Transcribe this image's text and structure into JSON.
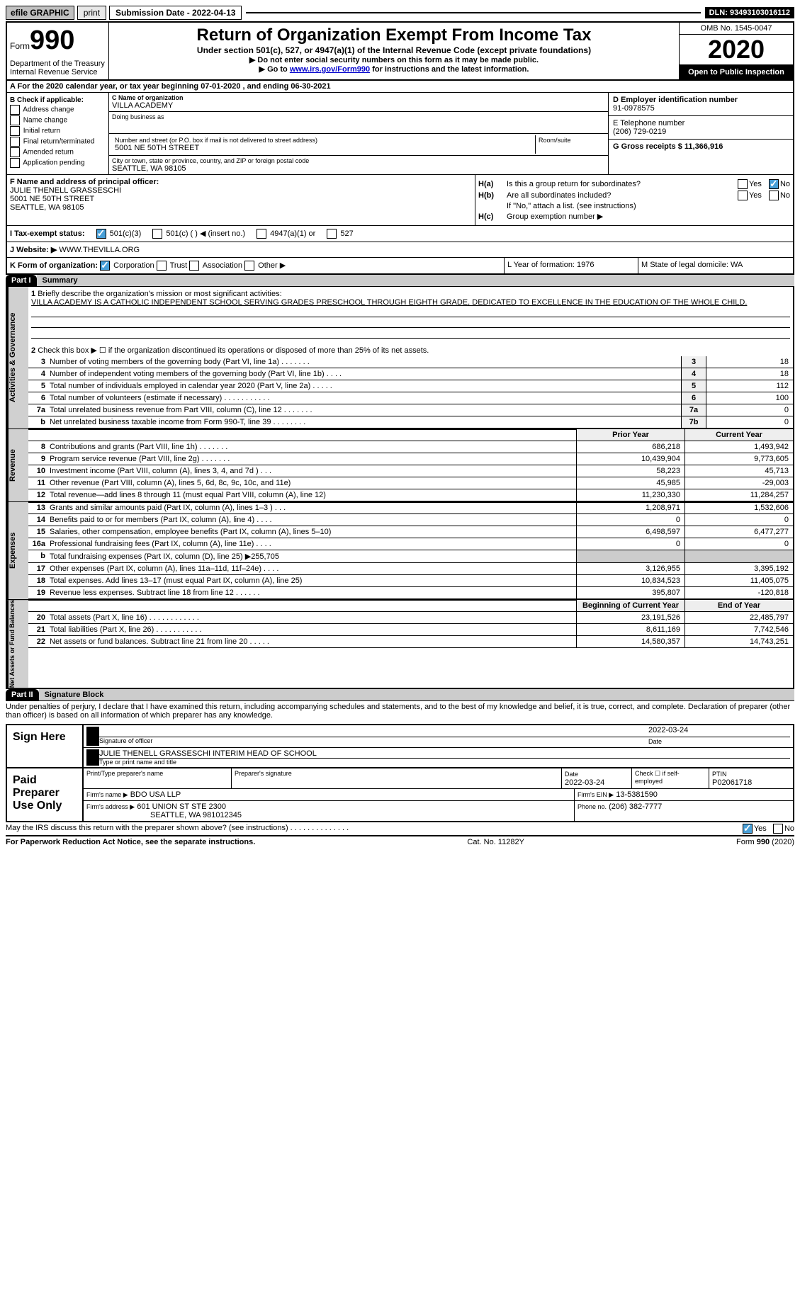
{
  "topbar": {
    "efile": "efile GRAPHIC",
    "print": "print",
    "subdate_label": "Submission Date - 2022-04-13",
    "dln": "DLN: 93493103016112"
  },
  "header": {
    "form_word": "Form",
    "form_num": "990",
    "dept1": "Department of the Treasury",
    "dept2": "Internal Revenue Service",
    "title": "Return of Organization Exempt From Income Tax",
    "subtitle": "Under section 501(c), 527, or 4947(a)(1) of the Internal Revenue Code (except private foundations)",
    "ssn": "▶ Do not enter social security numbers on this form as it may be made public.",
    "goto_pre": "▶ Go to ",
    "goto_link": "www.irs.gov/Form990",
    "goto_post": " for instructions and the latest information.",
    "omb": "OMB No. 1545-0047",
    "year": "2020",
    "open": "Open to Public Inspection"
  },
  "row_a": "A For the 2020 calendar year, or tax year beginning 07-01-2020     , and ending 06-30-2021",
  "box_b": {
    "title": "B Check if applicable:",
    "addr": "Address change",
    "name": "Name change",
    "initial": "Initial return",
    "final": "Final return/terminated",
    "amended": "Amended return",
    "app": "Application pending"
  },
  "box_c": {
    "name_label": "C Name of organization",
    "name": "VILLA ACADEMY",
    "dba_label": "Doing business as",
    "addr_label": "Number and street (or P.O. box if mail is not delivered to street address)",
    "room_label": "Room/suite",
    "addr": "5001 NE 50TH STREET",
    "city_label": "City or town, state or province, country, and ZIP or foreign postal code",
    "city": "SEATTLE, WA  98105"
  },
  "box_d": {
    "ein_label": "D Employer identification number",
    "ein": "91-0978575",
    "phone_label": "E Telephone number",
    "phone": "(206) 729-0219",
    "gross_label": "G Gross receipts $ 11,366,916"
  },
  "box_f": {
    "label": "F Name and address of principal officer:",
    "name": "JULIE THENELL GRASSESCHI",
    "addr": "5001 NE 50TH STREET",
    "city": "SEATTLE, WA  98105"
  },
  "box_h": {
    "ha": "Is this a group return for subordinates?",
    "hb": "Are all subordinates included?",
    "attach": "If \"No,\" attach a list. (see instructions)",
    "hc": "Group exemption number ▶",
    "yes": "Yes",
    "no": "No",
    "ha_label": "H(a)",
    "hb_label": "H(b)",
    "hc_label": "H(c)"
  },
  "row_i": {
    "label": "I   Tax-exempt status:",
    "c3": "501(c)(3)",
    "c": "501(c) (   ) ◀ (insert no.)",
    "a1": "4947(a)(1) or",
    "s527": "527"
  },
  "row_j": {
    "label": "J   Website: ▶",
    "val": "WWW.THEVILLA.ORG"
  },
  "row_k": {
    "label": "K Form of organization:",
    "corp": "Corporation",
    "trust": "Trust",
    "assoc": "Association",
    "other": "Other ▶"
  },
  "row_l": "L Year of formation: 1976",
  "row_m": "M State of legal domicile: WA",
  "part1": {
    "hdr": "Part I",
    "title": "Summary",
    "l1_label": "Briefly describe the organization's mission or most significant activities:",
    "l1_text": "VILLA ACADEMY IS A CATHOLIC INDEPENDENT SCHOOL SERVING GRADES PRESCHOOL THROUGH EIGHTH GRADE, DEDICATED TO EXCELLENCE IN THE EDUCATION OF THE WHOLE CHILD.",
    "l2": "Check this box ▶ ☐  if the organization discontinued its operations or disposed of more than 25% of its net assets.",
    "side1": "Activities & Governance",
    "side2": "Revenue",
    "side3": "Expenses",
    "side4": "Net Assets or Fund Balances",
    "prior_hdr": "Prior Year",
    "curr_hdr": "Current Year",
    "boy_hdr": "Beginning of Current Year",
    "eoy_hdr": "End of Year",
    "lines_gov": [
      {
        "n": "3",
        "t": "Number of voting members of the governing body (Part VI, line 1a)   .    .    .    .    .    .    .",
        "box": "3",
        "v": "18"
      },
      {
        "n": "4",
        "t": "Number of independent voting members of the governing body (Part VI, line 1b)   .    .    .    .",
        "box": "4",
        "v": "18"
      },
      {
        "n": "5",
        "t": "Total number of individuals employed in calendar year 2020 (Part V, line 2a)   .    .    .    .    .",
        "box": "5",
        "v": "112"
      },
      {
        "n": "6",
        "t": "Total number of volunteers (estimate if necessary)   .    .    .    .    .    .    .    .    .    .    .",
        "box": "6",
        "v": "100"
      },
      {
        "n": "7a",
        "t": "Total unrelated business revenue from Part VIII, column (C), line 12   .    .    .    .    .    .    .",
        "box": "7a",
        "v": "0"
      },
      {
        "n": "b",
        "t": "Net unrelated business taxable income from Form 990-T, line 39   .    .    .    .    .    .    .    .",
        "box": "7b",
        "v": "0"
      }
    ],
    "lines_rev": [
      {
        "n": "8",
        "t": "Contributions and grants (Part VIII, line 1h)   .    .    .    .    .    .    .",
        "p": "686,218",
        "c": "1,493,942"
      },
      {
        "n": "9",
        "t": "Program service revenue (Part VIII, line 2g)   .    .    .    .    .    .    .",
        "p": "10,439,904",
        "c": "9,773,605"
      },
      {
        "n": "10",
        "t": "Investment income (Part VIII, column (A), lines 3, 4, and 7d )   .    .    .",
        "p": "58,223",
        "c": "45,713"
      },
      {
        "n": "11",
        "t": "Other revenue (Part VIII, column (A), lines 5, 6d, 8c, 9c, 10c, and 11e)",
        "p": "45,985",
        "c": "-29,003"
      },
      {
        "n": "12",
        "t": "Total revenue—add lines 8 through 11 (must equal Part VIII, column (A), line 12)",
        "p": "11,230,330",
        "c": "11,284,257"
      }
    ],
    "lines_exp": [
      {
        "n": "13",
        "t": "Grants and similar amounts paid (Part IX, column (A), lines 1–3 )   .    .    .",
        "p": "1,208,971",
        "c": "1,532,606"
      },
      {
        "n": "14",
        "t": "Benefits paid to or for members (Part IX, column (A), line 4)   .    .    .    .",
        "p": "0",
        "c": "0"
      },
      {
        "n": "15",
        "t": "Salaries, other compensation, employee benefits (Part IX, column (A), lines 5–10)",
        "p": "6,498,597",
        "c": "6,477,277"
      },
      {
        "n": "16a",
        "t": "Professional fundraising fees (Part IX, column (A), line 11e)   .    .    .    .",
        "p": "0",
        "c": "0"
      },
      {
        "n": "b",
        "t": "Total fundraising expenses (Part IX, column (D), line 25) ▶255,705",
        "p": "",
        "c": "",
        "shaded": true
      },
      {
        "n": "17",
        "t": "Other expenses (Part IX, column (A), lines 11a–11d, 11f–24e)   .    .    .    .",
        "p": "3,126,955",
        "c": "3,395,192"
      },
      {
        "n": "18",
        "t": "Total expenses. Add lines 13–17 (must equal Part IX, column (A), line 25)",
        "p": "10,834,523",
        "c": "11,405,075"
      },
      {
        "n": "19",
        "t": "Revenue less expenses. Subtract line 18 from line 12   .    .    .    .    .    .",
        "p": "395,807",
        "c": "-120,818"
      }
    ],
    "lines_net": [
      {
        "n": "20",
        "t": "Total assets (Part X, line 16)   .    .    .    .    .    .    .    .    .    .    .    .",
        "p": "23,191,526",
        "c": "22,485,797"
      },
      {
        "n": "21",
        "t": "Total liabilities (Part X, line 26)   .    .    .    .    .    .    .    .    .    .    .",
        "p": "8,611,169",
        "c": "7,742,546"
      },
      {
        "n": "22",
        "t": "Net assets or fund balances. Subtract line 21 from line 20   .    .    .    .    .",
        "p": "14,580,357",
        "c": "14,743,251"
      }
    ]
  },
  "part2": {
    "hdr": "Part II",
    "title": "Signature Block",
    "decl": "Under penalties of perjury, I declare that I have examined this return, including accompanying schedules and statements, and to the best of my knowledge and belief, it is true, correct, and complete. Declaration of preparer (other than officer) is based on all information of which preparer has any knowledge.",
    "sign_here": "Sign Here",
    "sig_officer": "Signature of officer",
    "sig_date": "2022-03-24",
    "date_label": "Date",
    "officer_name": "JULIE THENELL GRASSESCHI INTERIM HEAD OF SCHOOL",
    "type_name": "Type or print name and title",
    "paid": "Paid Preparer Use Only",
    "prep_name_label": "Print/Type preparer's name",
    "prep_sig_label": "Preparer's signature",
    "prep_date_label": "Date",
    "prep_date": "2022-03-24",
    "self_emp": "Check ☐ if self-employed",
    "ptin_label": "PTIN",
    "ptin": "P02061718",
    "firm_name_label": "Firm's name    ▶",
    "firm_name": "BDO USA LLP",
    "firm_ein_label": "Firm's EIN ▶",
    "firm_ein": "13-5381590",
    "firm_addr_label": "Firm's address ▶",
    "firm_addr1": "601 UNION ST STE 2300",
    "firm_addr2": "SEATTLE, WA  981012345",
    "firm_phone_label": "Phone no.",
    "firm_phone": "(206) 382-7777",
    "discuss": "May the IRS discuss this return with the preparer shown above? (see instructions)    .    .    .    .    .    .    .    .    .    .    .    .    .    .",
    "yes": "Yes",
    "no": "No"
  },
  "footer": {
    "pra": "For Paperwork Reduction Act Notice, see the separate instructions.",
    "cat": "Cat. No. 11282Y",
    "form": "Form 990 (2020)"
  }
}
